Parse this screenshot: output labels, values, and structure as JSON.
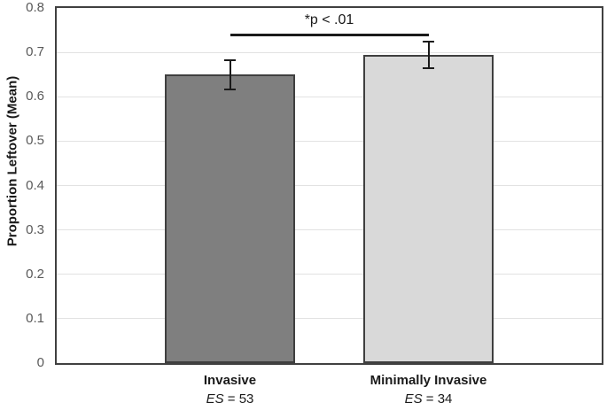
{
  "chart_data": {
    "type": "bar",
    "title": "",
    "xlabel": "",
    "ylabel": "Proportion Leftover (Mean)",
    "ylim": [
      0,
      0.8
    ],
    "yticks": [
      "0",
      "0.1",
      "0.2",
      "0.3",
      "0.4",
      "0.5",
      "0.6",
      "0.7",
      "0.8"
    ],
    "grid": true,
    "legend": false,
    "categories": [
      {
        "label": "Invasive",
        "es_label": "ES",
        "es_value": " = 53"
      },
      {
        "label": "Minimally Invasive",
        "es_label": "ES",
        "es_value": " = 34"
      }
    ],
    "values": [
      0.65,
      0.695
    ],
    "errors": [
      0.033,
      0.03
    ],
    "annotation": {
      "text": "*p < .01",
      "y": 0.74
    },
    "colors": {
      "bar_fills": [
        "#7f7f7f",
        "#d9d9d9"
      ],
      "bar_border": "#3f3f3f",
      "axis_frame": "#404040",
      "gridline": "#e2e2e2",
      "tick_label": "#595959",
      "error_bar": "#1a1a1a",
      "sig_line": "#1a1a1a",
      "text": "#1a1a1a"
    }
  }
}
